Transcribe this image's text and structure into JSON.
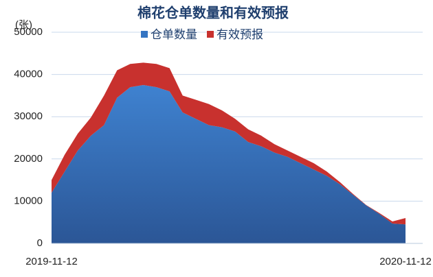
{
  "chart_data": {
    "type": "stacked_area",
    "title": "棉花仓单数量和有效预报",
    "y_label": "(张)",
    "categories": [
      "2019-11-12",
      null,
      null,
      null,
      null,
      null,
      null,
      null,
      null,
      null,
      null,
      null,
      null,
      null,
      null,
      null,
      null,
      null,
      null,
      null,
      null,
      null,
      null,
      null,
      null,
      null,
      null,
      "2020-11-12"
    ],
    "series": [
      {
        "name": "仓单数量",
        "color": "#3474c2",
        "values": [
          12000,
          17000,
          22000,
          25500,
          28000,
          34500,
          37000,
          37500,
          37000,
          36000,
          31000,
          29500,
          28000,
          27500,
          26500,
          24000,
          23000,
          21500,
          20500,
          19000,
          17500,
          16000,
          14000,
          11500,
          9000,
          7000,
          4700,
          4500
        ]
      },
      {
        "name": "有效预报",
        "color": "#c8312e",
        "values": [
          3000,
          4000,
          4000,
          4300,
          7000,
          6500,
          5500,
          5300,
          5500,
          5500,
          4000,
          4500,
          5000,
          4000,
          3000,
          3000,
          2500,
          2000,
          1500,
          1500,
          1500,
          1000,
          500,
          200,
          100,
          200,
          500,
          1500
        ]
      }
    ],
    "ylim": [
      0,
      50000
    ],
    "yticks": [
      0,
      10000,
      20000,
      30000,
      40000,
      50000
    ],
    "grid": true
  }
}
